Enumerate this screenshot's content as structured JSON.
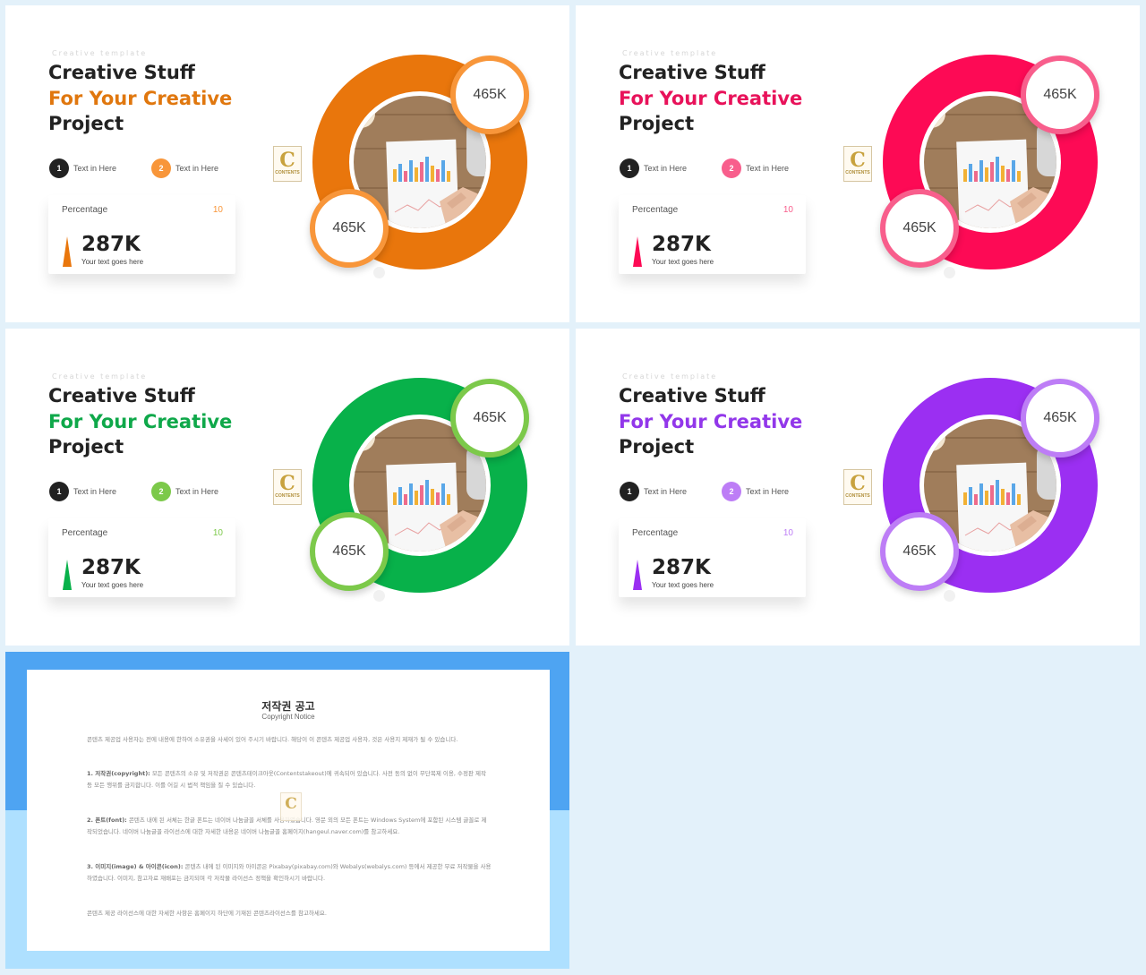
{
  "slides": [
    {
      "eyebrow": "Creative   template",
      "title_line1": "Creative Stuff",
      "title_line2": "For Your Creative",
      "title_line3": "Project",
      "item1_num": "1",
      "item1_label": "Text in Here",
      "item2_num": "2",
      "item2_label": "Text in Here",
      "card_label": "Percentage",
      "card_num": "10",
      "card_value": "287K",
      "card_sub": "Your text goes here",
      "badge1": "465K",
      "badge2": "465K",
      "logo_letter": "C",
      "logo_text": "CONTENTS",
      "accent": "#e9760c",
      "badge_ring": "#f8963a",
      "title_color": "#e0770e"
    },
    {
      "eyebrow": "Creative   template",
      "title_line1": "Creative Stuff",
      "title_line2": "For Your Creative",
      "title_line3": "Project",
      "item1_num": "1",
      "item1_label": "Text in Here",
      "item2_num": "2",
      "item2_label": "Text in Here",
      "card_label": "Percentage",
      "card_num": "10",
      "card_value": "287K",
      "card_sub": "Your text goes here",
      "badge1": "465K",
      "badge2": "465K",
      "logo_letter": "C",
      "logo_text": "CONTENTS",
      "accent": "#fd0a55",
      "badge_ring": "#f85e8c",
      "title_color": "#e8125a"
    },
    {
      "eyebrow": "Creative   template",
      "title_line1": "Creative Stuff",
      "title_line2": "For Your Creative",
      "title_line3": "Project",
      "item1_num": "1",
      "item1_label": "Text in Here",
      "item2_num": "2",
      "item2_label": "Text in Here",
      "card_label": "Percentage",
      "card_num": "10",
      "card_value": "287K",
      "card_sub": "Your text goes here",
      "badge1": "465K",
      "badge2": "465K",
      "logo_letter": "C",
      "logo_text": "CONTENTS",
      "accent": "#08b14a",
      "badge_ring": "#7cc94a",
      "title_color": "#0fa84a"
    },
    {
      "eyebrow": "Creative   template",
      "title_line1": "Creative Stuff",
      "title_line2": "For Your Creative",
      "title_line3": "Project",
      "item1_num": "1",
      "item1_label": "Text in Here",
      "item2_num": "2",
      "item2_label": "Text in Here",
      "card_label": "Percentage",
      "card_num": "10",
      "card_value": "287K",
      "card_sub": "Your text goes here",
      "badge1": "465K",
      "badge2": "465K",
      "logo_letter": "C",
      "logo_text": "CONTENTS",
      "accent": "#9b2ff2",
      "badge_ring": "#bd7df6",
      "title_color": "#9237ea"
    }
  ],
  "copyright": {
    "title": "저작권 공고",
    "subtitle": "Copyright Notice",
    "intro": "콘텐츠 제공업 사용자는 전에 내용에 한하여 소유권을 사세이 있어 주시기 바랍니다. 해당이 이 콘텐츠 제공업 사용자, 것은 사용지 제재가 될 수 있습니다.",
    "s1_head": "1. 저작권(copyright):",
    "s1_body": " 모든 콘텐츠의 소유 및 저작권은 콘텐츠테이크아웃(Contentstakeout)에 귀속되어 있습니다. 사전 동의 없이 무단복제 이용, 수정판 제작 등 모든 행위를 금지합니다. 이를 어길 시 법적 책임을 질 수 있습니다.",
    "s2_head": "2. 폰트(font):",
    "s2_body": " 콘텐츠 내에 된 서체는 한글 폰트는 네이버 나눔글꼴 서체를 사용하였습니다. 영문 외의 모든 폰트는 Windows System에 포함된 시스템 글꼴로 제작되었습니다. 네이버 나눔글꼴 라이선스에 대한 자세한 내용은 네이버 나눔글꼴 홈페이지(hangeul.naver.com)를 참고하세요.",
    "s3_head": "3. 이미지(image) & 아이콘(icon):",
    "s3_body": " 콘텐츠 내에 된 이미지와 아이콘은 Pixabay(pixabay.com)와 Webalys(webalys.com) 등에서 제공한 무료 저작물을 사용하였습니다. 이미지, 참고자료 재배포는 금지되며 각 저작물 라이선스 정책을 확인하시기 바랍니다.",
    "outro": "콘텐츠 제공 라이선스에 대한 자세한 사항은 홈페이지 하단에 기재된 콘텐츠라이선스를 참고하세요."
  }
}
